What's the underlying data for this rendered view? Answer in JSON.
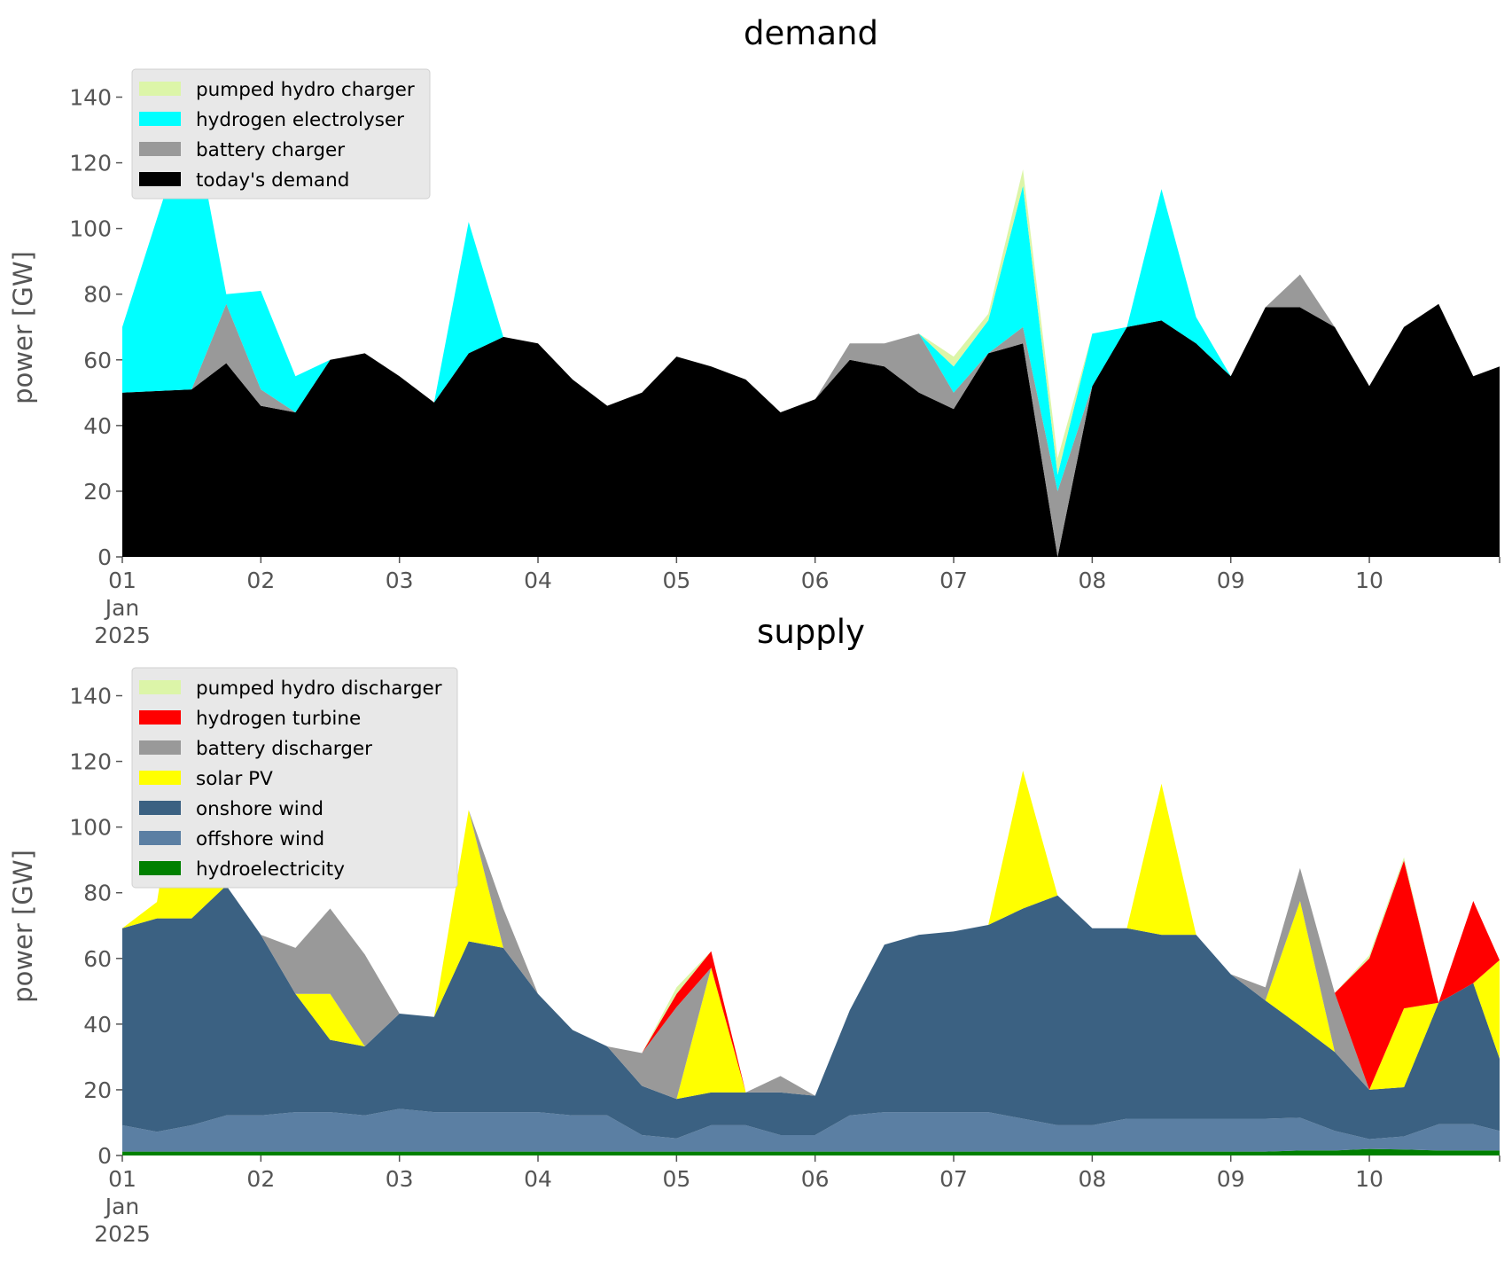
{
  "chart_data": [
    {
      "type": "area",
      "stacked": true,
      "title": "demand",
      "ylabel": "power [GW]",
      "xlabel": "",
      "ylim": [
        0,
        145
      ],
      "xlim": [
        0,
        9.94
      ],
      "x_unit": "days after 2025-01-01 00:00",
      "yticks": [
        "0",
        "20",
        "40",
        "60",
        "80",
        "100",
        "120",
        "140"
      ],
      "xticks": [
        "01",
        "02",
        "03",
        "04",
        "05",
        "06",
        "07",
        "08",
        "09",
        "10"
      ],
      "xtick_sub": [
        "Jan",
        "2025"
      ],
      "grid": false,
      "legend_position": "upper-left",
      "legend": [
        "pumped hydro charger",
        "hydrogen electrolyser",
        "battery charger",
        "today's demand"
      ],
      "x": [
        0,
        0.5,
        0.75,
        1,
        1.25,
        1.5,
        1.75,
        2,
        2.25,
        2.5,
        2.75,
        3,
        3.25,
        3.5,
        3.75,
        4,
        4.25,
        4.5,
        4.75,
        5,
        5.25,
        5.5,
        5.75,
        6,
        6.25,
        6.5,
        6.75,
        7,
        7.25,
        7.5,
        7.75,
        8,
        8.25,
        8.5,
        8.75,
        9,
        9.25,
        9.5,
        9.75,
        9.94
      ],
      "series": [
        {
          "name": "today's demand",
          "color": "#000000",
          "values": [
            50,
            51,
            59,
            46,
            44,
            60,
            62,
            55,
            47,
            62,
            67,
            65,
            54,
            46,
            50,
            61,
            58,
            54,
            44,
            48,
            60,
            58,
            50,
            45,
            62,
            65,
            0,
            52,
            70,
            72,
            65,
            55,
            76,
            76,
            70,
            52,
            70,
            77,
            55,
            58
          ]
        },
        {
          "name": "battery charger",
          "color": "#999999",
          "values": [
            0,
            0,
            18,
            5,
            0,
            0,
            0,
            0,
            0,
            0,
            0,
            0,
            0,
            0,
            0,
            0,
            0,
            0,
            0,
            0,
            5,
            7,
            18,
            5,
            0,
            5,
            20,
            0,
            0,
            0,
            0,
            0,
            0,
            10,
            0,
            0,
            0,
            0,
            0,
            0
          ]
        },
        {
          "name": "hydrogen electrolyser",
          "color": "#00ffff",
          "values": [
            20,
            85,
            3,
            30,
            11,
            0,
            0,
            0,
            0,
            40,
            0,
            0,
            0,
            0,
            0,
            0,
            0,
            0,
            0,
            0,
            0,
            0,
            0,
            8,
            10,
            43,
            5,
            16,
            0,
            40,
            8,
            0,
            0,
            0,
            0,
            0,
            0,
            0,
            0,
            0
          ]
        },
        {
          "name": "pumped hydro charger",
          "color": "#dcf5a8",
          "values": [
            0,
            0,
            0,
            0,
            0,
            0,
            0,
            0,
            0,
            0,
            0,
            0,
            0,
            0,
            0,
            0,
            0,
            0,
            0,
            0,
            0,
            0,
            0,
            3,
            2,
            5,
            5,
            0,
            0,
            0,
            0,
            0,
            0,
            0,
            0,
            0,
            0,
            0,
            0,
            0
          ]
        }
      ]
    },
    {
      "type": "area",
      "stacked": true,
      "title": "supply",
      "ylabel": "power [GW]",
      "xlabel": "",
      "ylim": [
        0,
        145
      ],
      "xlim": [
        0,
        9.94
      ],
      "x_unit": "days after 2025-01-01 00:00",
      "yticks": [
        "0",
        "20",
        "40",
        "60",
        "80",
        "100",
        "120",
        "140"
      ],
      "xticks": [
        "01",
        "02",
        "03",
        "04",
        "05",
        "06",
        "07",
        "08",
        "09",
        "10"
      ],
      "xtick_sub": [
        "Jan",
        "2025"
      ],
      "grid": false,
      "legend_position": "upper-left",
      "legend": [
        "pumped hydro discharger",
        "hydrogen turbine",
        "battery discharger",
        "solar PV",
        "onshore wind",
        "offshore wind",
        "hydroelectricity"
      ],
      "x": [
        0,
        0.25,
        0.5,
        0.75,
        1,
        1.25,
        1.5,
        1.75,
        2,
        2.25,
        2.5,
        2.75,
        3,
        3.25,
        3.5,
        3.75,
        4,
        4.25,
        4.5,
        4.75,
        5,
        5.25,
        5.5,
        5.75,
        6,
        6.25,
        6.5,
        6.75,
        7,
        7.25,
        7.5,
        7.75,
        8,
        8.25,
        8.5,
        8.75,
        9,
        9.25,
        9.5,
        9.75,
        9.94
      ],
      "series": [
        {
          "name": "hydroelectricity",
          "color": "#008000",
          "values": [
            1.2,
            1.2,
            1.2,
            1.2,
            1.2,
            1.2,
            1.2,
            1.2,
            1.2,
            1.2,
            1.2,
            1.2,
            1.2,
            1.2,
            1.2,
            1.2,
            1.2,
            1.2,
            1.2,
            1.2,
            1.2,
            1.2,
            1.2,
            1.2,
            1.2,
            1.2,
            1.2,
            1.2,
            1.2,
            1.2,
            1.2,
            1.2,
            1.2,
            1.2,
            1.5,
            1.5,
            2,
            1.8,
            1.5,
            1.5,
            1.5
          ]
        },
        {
          "name": "offshore wind",
          "color": "#5b7fa3",
          "values": [
            8,
            6,
            8,
            11,
            11,
            12,
            12,
            11,
            13,
            12,
            12,
            12,
            12,
            11,
            11,
            5,
            4,
            8,
            8,
            5,
            5,
            11,
            12,
            12,
            12,
            12,
            10,
            8,
            8,
            10,
            10,
            10,
            10,
            10,
            10,
            6,
            3,
            4,
            8,
            8,
            6
          ]
        },
        {
          "name": "onshore wind",
          "color": "#3b6182",
          "values": [
            60,
            65,
            63,
            70,
            55,
            36,
            22,
            21,
            29,
            29,
            52,
            50,
            36,
            26,
            21,
            15,
            12,
            10,
            10,
            13,
            12,
            32,
            51,
            54,
            55,
            57,
            64,
            70,
            60,
            58,
            56,
            56,
            44,
            36,
            28,
            24,
            15,
            15,
            37,
            43,
            22
          ]
        },
        {
          "name": "solar PV",
          "color": "#ffff00",
          "values": [
            0,
            5,
            70,
            0,
            0,
            0,
            14,
            0,
            0,
            0,
            40,
            0,
            0,
            0,
            0,
            0,
            0,
            38,
            0,
            0,
            0,
            0,
            0,
            0,
            0,
            0,
            42,
            0,
            0,
            0,
            46,
            0,
            0,
            0,
            38,
            0,
            0,
            24,
            0,
            0,
            30
          ]
        },
        {
          "name": "battery discharger",
          "color": "#999999",
          "values": [
            0,
            0,
            0,
            0,
            0,
            14,
            26,
            28,
            0,
            0,
            0,
            12,
            0,
            0,
            0,
            10,
            28,
            0,
            0,
            5,
            0,
            0,
            0,
            0,
            0,
            0,
            0,
            0,
            0,
            0,
            0,
            0,
            0,
            4,
            10,
            18,
            0,
            0,
            0,
            0,
            0
          ]
        },
        {
          "name": "hydrogen turbine",
          "color": "#ff0000",
          "values": [
            0,
            0,
            0,
            0,
            0,
            0,
            0,
            0,
            0,
            0,
            0,
            0,
            0,
            0,
            0,
            0,
            4,
            5,
            0,
            0,
            0,
            0,
            0,
            0,
            0,
            0,
            0,
            0,
            0,
            0,
            0,
            0,
            0,
            0,
            0,
            0,
            40,
            45,
            0,
            25,
            0
          ]
        },
        {
          "name": "pumped hydro discharger",
          "color": "#dcf5a8",
          "values": [
            0,
            0,
            0,
            0,
            0,
            0,
            0,
            0,
            0,
            0,
            0,
            0,
            0,
            0,
            0,
            0,
            2,
            0,
            0,
            0,
            0,
            0,
            0,
            0,
            0,
            0,
            0,
            0,
            0,
            0,
            0,
            0,
            0,
            0,
            0,
            0,
            1,
            1,
            0,
            0,
            0
          ]
        }
      ]
    }
  ]
}
